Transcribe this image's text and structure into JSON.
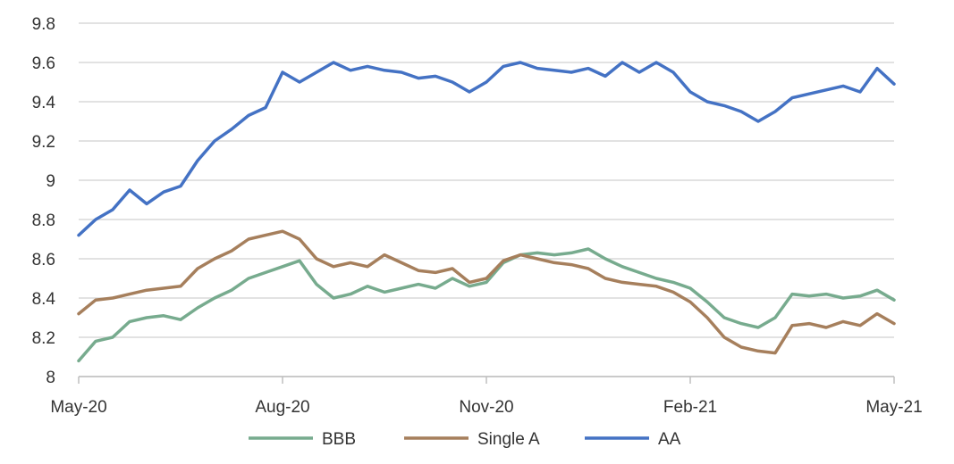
{
  "chart_data": {
    "type": "line",
    "title": "",
    "xlabel": "",
    "ylabel": "",
    "x_tick_labels": [
      "May-20",
      "Aug-20",
      "Nov-20",
      "Feb-21",
      "May-21"
    ],
    "x_range": [
      "May-20",
      "May-21"
    ],
    "ylim": [
      8,
      9.8
    ],
    "y_ticks": [
      8,
      8.2,
      8.4,
      8.6,
      8.8,
      9,
      9.2,
      9.4,
      9.6,
      9.8
    ],
    "y_tick_labels": [
      "8",
      "8.2",
      "8.4",
      "8.6",
      "8.8",
      "9",
      "9.2",
      "9.4",
      "9.6",
      "9.8"
    ],
    "grid": "horizontal",
    "legend_position": "bottom",
    "x_unit": "months since May-20",
    "series": [
      {
        "name": "BBB",
        "color": "#77ab8e",
        "x": [
          0,
          0.25,
          0.5,
          0.75,
          1,
          1.25,
          1.5,
          1.75,
          2,
          2.25,
          2.5,
          2.75,
          3,
          3.25,
          3.5,
          3.75,
          4,
          4.25,
          4.5,
          4.75,
          5,
          5.25,
          5.5,
          5.75,
          6,
          6.25,
          6.5,
          6.75,
          7,
          7.25,
          7.5,
          7.75,
          8,
          8.25,
          8.5,
          8.75,
          9,
          9.25,
          9.5,
          9.75,
          10,
          10.25,
          10.5,
          10.75,
          11,
          11.25,
          11.5,
          11.75,
          12
        ],
        "values": [
          8.08,
          8.18,
          8.2,
          8.28,
          8.3,
          8.31,
          8.29,
          8.35,
          8.4,
          8.44,
          8.5,
          8.53,
          8.56,
          8.59,
          8.47,
          8.4,
          8.42,
          8.46,
          8.43,
          8.45,
          8.47,
          8.45,
          8.5,
          8.46,
          8.48,
          8.58,
          8.62,
          8.63,
          8.62,
          8.63,
          8.65,
          8.6,
          8.56,
          8.53,
          8.5,
          8.48,
          8.45,
          8.38,
          8.3,
          8.27,
          8.25,
          8.3,
          8.42,
          8.41,
          8.42,
          8.4,
          8.41,
          8.44,
          8.39
        ]
      },
      {
        "name": "Single A",
        "color": "#a67f5c",
        "x": [
          0,
          0.25,
          0.5,
          0.75,
          1,
          1.25,
          1.5,
          1.75,
          2,
          2.25,
          2.5,
          2.75,
          3,
          3.25,
          3.5,
          3.75,
          4,
          4.25,
          4.5,
          4.75,
          5,
          5.25,
          5.5,
          5.75,
          6,
          6.25,
          6.5,
          6.75,
          7,
          7.25,
          7.5,
          7.75,
          8,
          8.25,
          8.5,
          8.75,
          9,
          9.25,
          9.5,
          9.75,
          10,
          10.25,
          10.5,
          10.75,
          11,
          11.25,
          11.5,
          11.75,
          12
        ],
        "values": [
          8.32,
          8.39,
          8.4,
          8.42,
          8.44,
          8.45,
          8.46,
          8.55,
          8.6,
          8.64,
          8.7,
          8.72,
          8.74,
          8.7,
          8.6,
          8.56,
          8.58,
          8.56,
          8.62,
          8.58,
          8.54,
          8.53,
          8.55,
          8.48,
          8.5,
          8.59,
          8.62,
          8.6,
          8.58,
          8.57,
          8.55,
          8.5,
          8.48,
          8.47,
          8.46,
          8.43,
          8.38,
          8.3,
          8.2,
          8.15,
          8.13,
          8.12,
          8.26,
          8.27,
          8.25,
          8.28,
          8.26,
          8.32,
          8.27
        ]
      },
      {
        "name": "AA",
        "color": "#4472c4",
        "x": [
          0,
          0.25,
          0.5,
          0.75,
          1,
          1.25,
          1.5,
          1.75,
          2,
          2.25,
          2.5,
          2.75,
          3,
          3.25,
          3.5,
          3.75,
          4,
          4.25,
          4.5,
          4.75,
          5,
          5.25,
          5.5,
          5.75,
          6,
          6.25,
          6.5,
          6.75,
          7,
          7.25,
          7.5,
          7.75,
          8,
          8.25,
          8.5,
          8.75,
          9,
          9.25,
          9.5,
          9.75,
          10,
          10.25,
          10.5,
          10.75,
          11,
          11.25,
          11.5,
          11.75,
          12
        ],
        "values": [
          8.72,
          8.8,
          8.85,
          8.95,
          8.88,
          8.94,
          8.97,
          9.1,
          9.2,
          9.26,
          9.33,
          9.37,
          9.55,
          9.5,
          9.55,
          9.6,
          9.56,
          9.58,
          9.56,
          9.55,
          9.52,
          9.53,
          9.5,
          9.45,
          9.5,
          9.58,
          9.6,
          9.57,
          9.56,
          9.55,
          9.57,
          9.53,
          9.6,
          9.55,
          9.6,
          9.55,
          9.45,
          9.4,
          9.38,
          9.35,
          9.3,
          9.35,
          9.42,
          9.44,
          9.46,
          9.48,
          9.45,
          9.57,
          9.49
        ]
      }
    ]
  }
}
